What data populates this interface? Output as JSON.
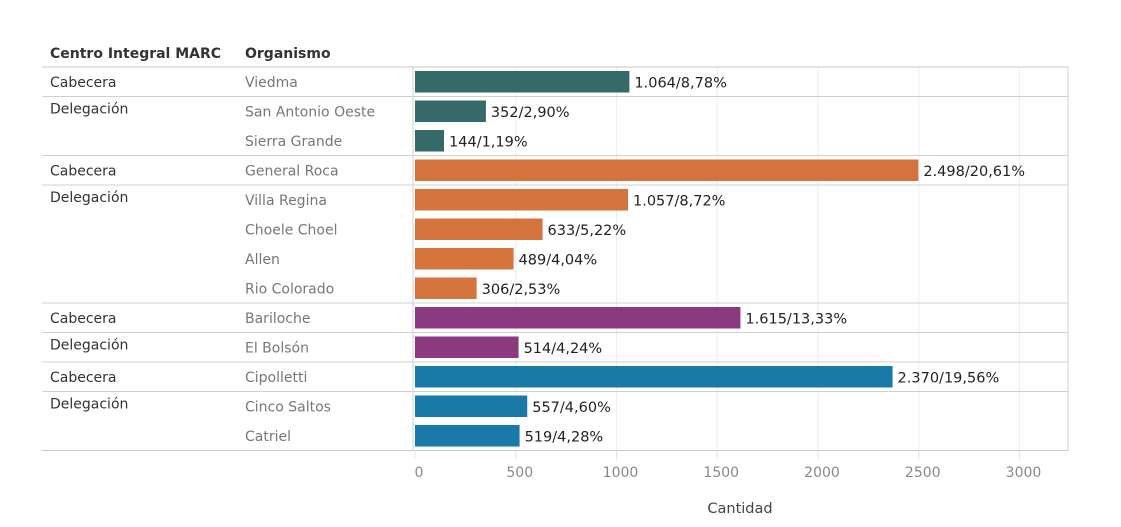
{
  "chart_data": {
    "type": "bar",
    "orientation": "horizontal",
    "headers": {
      "group": "Centro Integral MARC",
      "category": "Organismo"
    },
    "xlabel": "Cantidad",
    "xlim": [
      0,
      3200
    ],
    "xticks": [
      "0",
      "500",
      "1000",
      "1500",
      "2000",
      "2500",
      "3000"
    ],
    "xtick_values": [
      0,
      500,
      1000,
      1500,
      2000,
      2500,
      3000
    ],
    "grid": true,
    "colors": {
      "Viedma": "#366a69",
      "Roca": "#d4733b",
      "Bariloche": "#8b3a7f",
      "Cipolletti": "#1979a9"
    },
    "rows": [
      {
        "type": "Cabecera",
        "category": "Viedma",
        "value": 1064,
        "label": "1.064/8,78%",
        "color_group": "Viedma",
        "group_start": true
      },
      {
        "type": "Delegación",
        "category": "San Antonio Oeste",
        "value": 352,
        "label": "352/2,90%",
        "color_group": "Viedma",
        "group_start": true
      },
      {
        "type": "",
        "category": "Sierra Grande",
        "value": 144,
        "label": "144/1,19%",
        "color_group": "Viedma",
        "group_start": false
      },
      {
        "type": "Cabecera",
        "category": "General Roca",
        "value": 2498,
        "label": "2.498/20,61%",
        "color_group": "Roca",
        "group_start": true
      },
      {
        "type": "Delegación",
        "category": "Villa Regina",
        "value": 1057,
        "label": "1.057/8,72%",
        "color_group": "Roca",
        "group_start": true
      },
      {
        "type": "",
        "category": "Choele Choel",
        "value": 633,
        "label": "633/5,22%",
        "color_group": "Roca",
        "group_start": false
      },
      {
        "type": "",
        "category": "Allen",
        "value": 489,
        "label": "489/4,04%",
        "color_group": "Roca",
        "group_start": false
      },
      {
        "type": "",
        "category": "Rio Colorado",
        "value": 306,
        "label": "306/2,53%",
        "color_group": "Roca",
        "group_start": false
      },
      {
        "type": "Cabecera",
        "category": "Bariloche",
        "value": 1615,
        "label": "1.615/13,33%",
        "color_group": "Bariloche",
        "group_start": true
      },
      {
        "type": "Delegación",
        "category": "El Bolsón",
        "value": 514,
        "label": "514/4,24%",
        "color_group": "Bariloche",
        "group_start": true
      },
      {
        "type": "Cabecera",
        "category": "Cipolletti",
        "value": 2370,
        "label": "2.370/19,56%",
        "color_group": "Cipolletti",
        "group_start": true
      },
      {
        "type": "Delegación",
        "category": "Cinco Saltos",
        "value": 557,
        "label": "557/4,60%",
        "color_group": "Cipolletti",
        "group_start": true
      },
      {
        "type": "",
        "category": "Catriel",
        "value": 519,
        "label": "519/4,28%",
        "color_group": "Cipolletti",
        "group_start": false
      }
    ]
  }
}
